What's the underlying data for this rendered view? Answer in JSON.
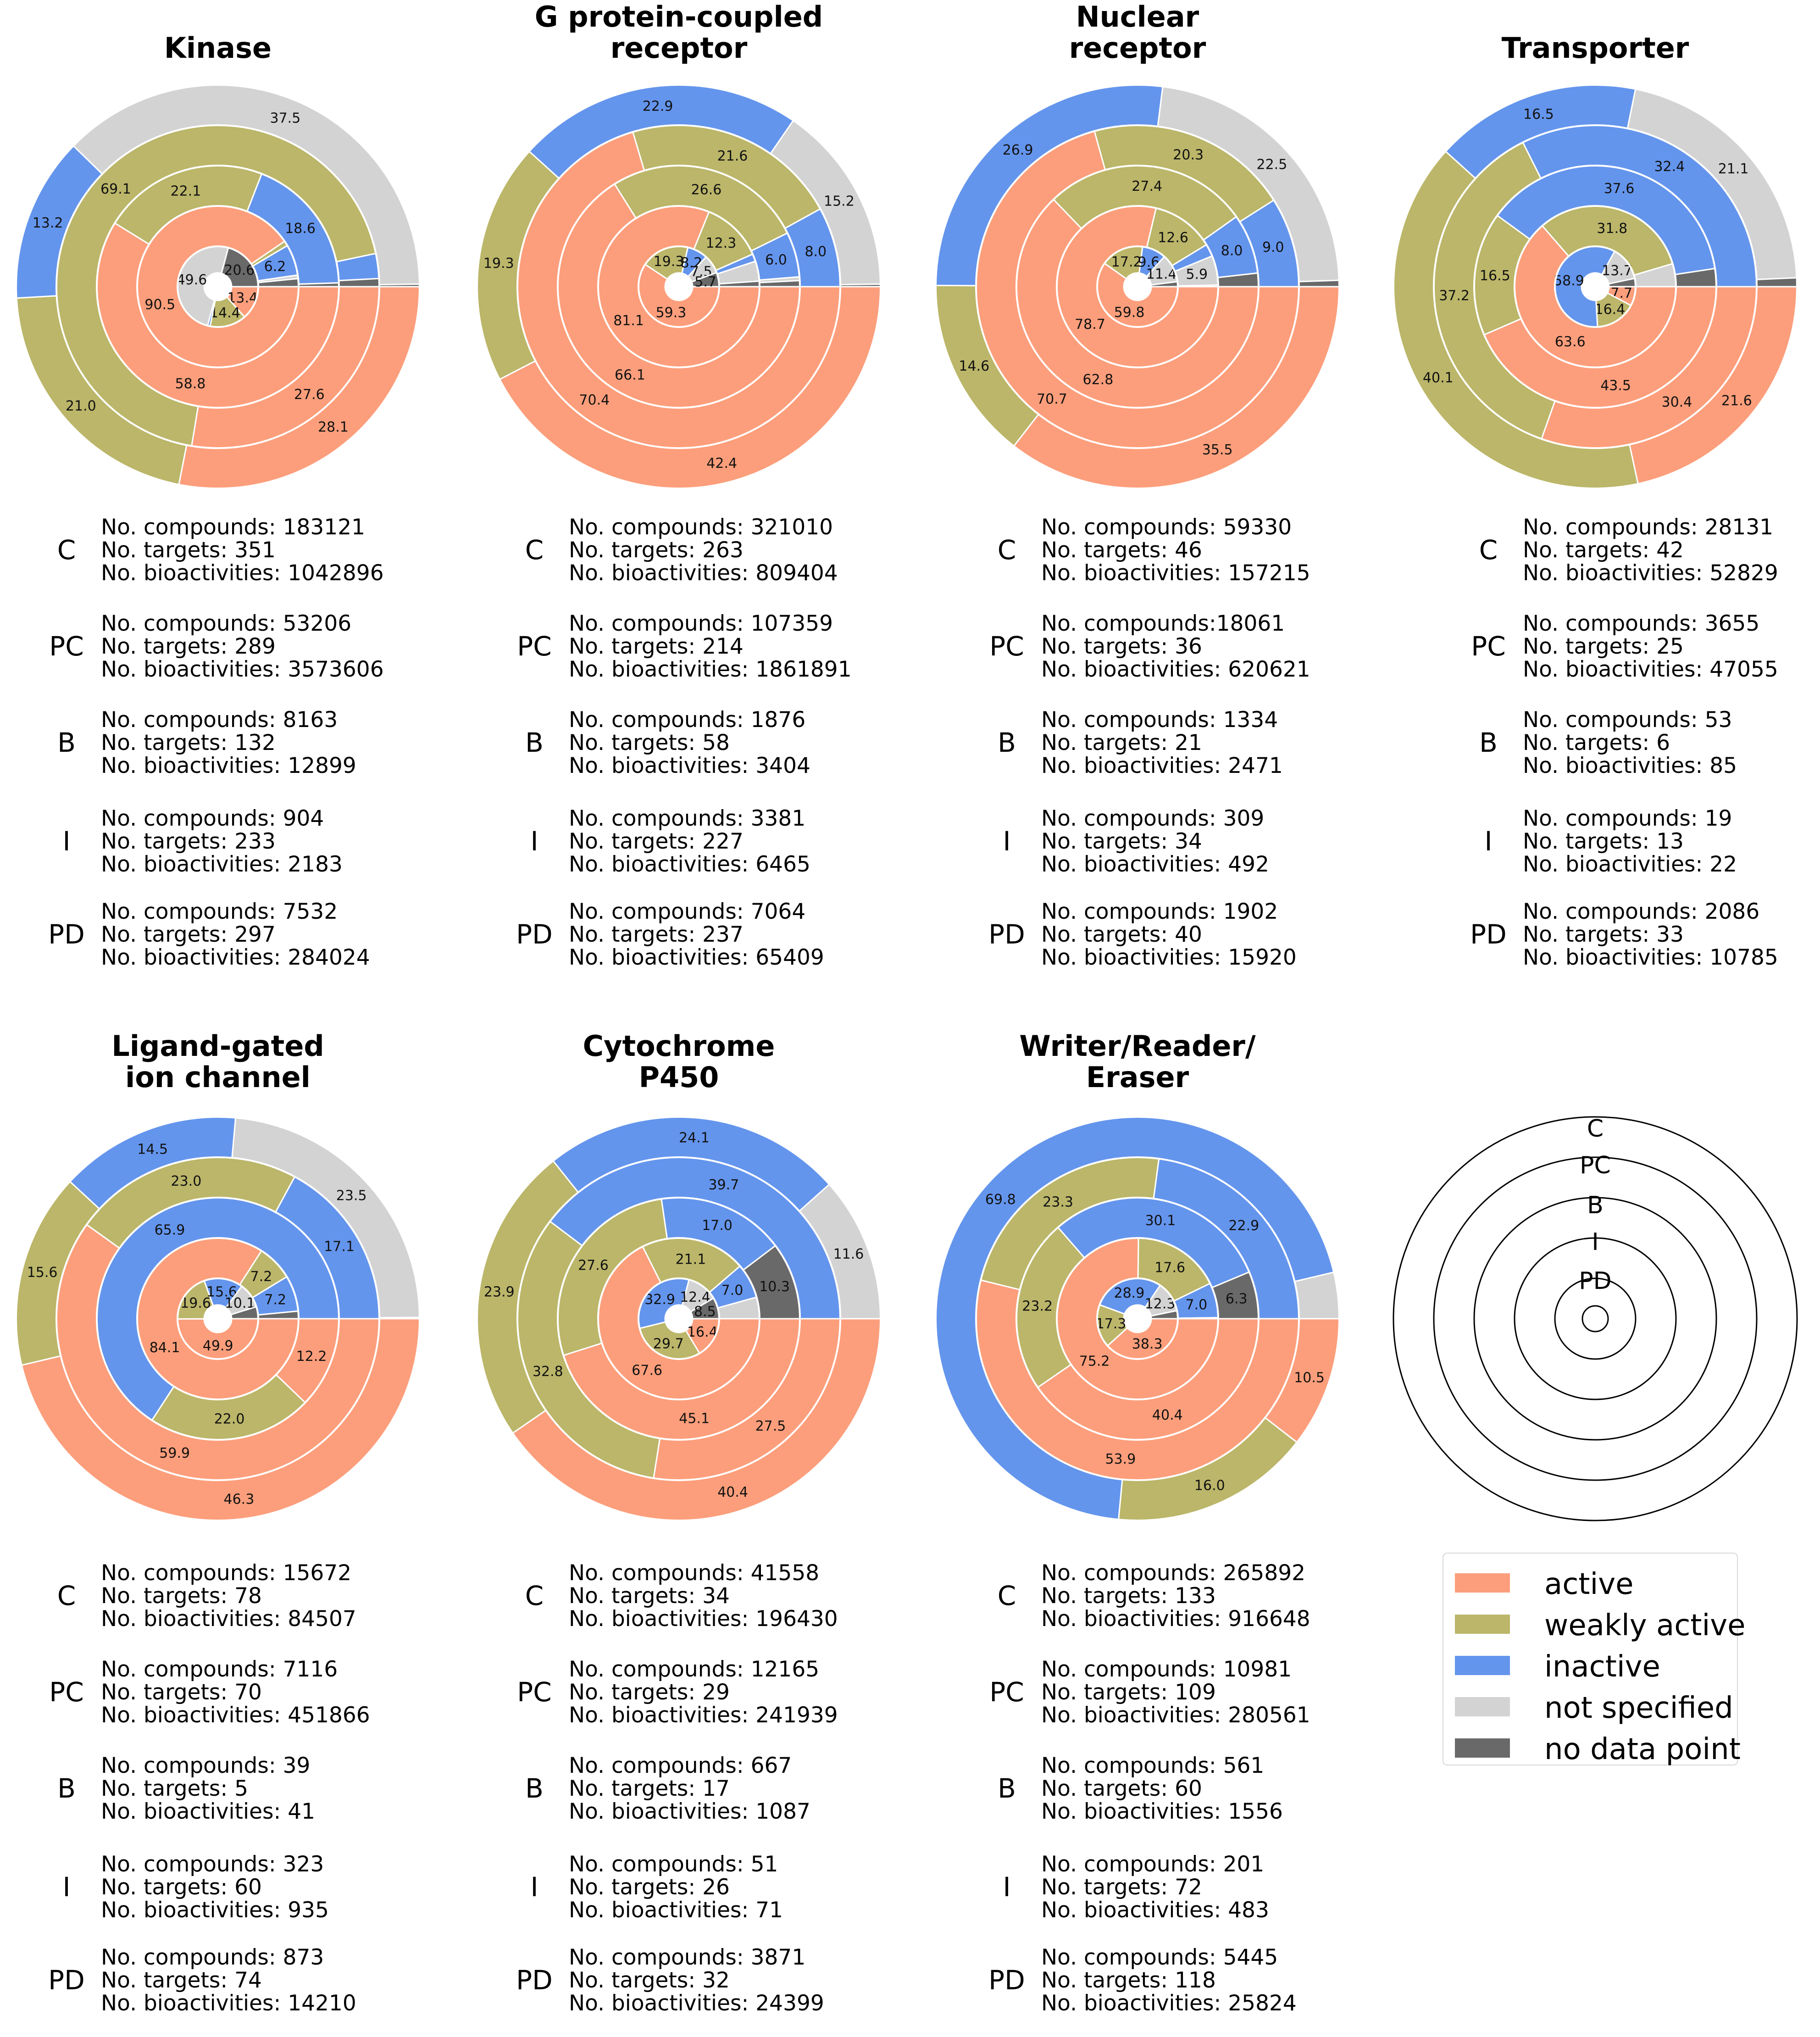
{
  "colors": {
    "active": "#fc9e7b",
    "weakly_active": "#bbb669",
    "inactive": "#6495ed",
    "not_specified": "#d3d3d3",
    "no_data_point": "#696969"
  },
  "legend": [
    {
      "key": "active",
      "label": "active"
    },
    {
      "key": "weakly_active",
      "label": "weakly active"
    },
    {
      "key": "inactive",
      "label": "inactive"
    },
    {
      "key": "not_specified",
      "label": "not specified"
    },
    {
      "key": "no_data_point",
      "label": "no data point"
    }
  ],
  "key_rings": [
    "C",
    "PC",
    "B",
    "I",
    "PD"
  ],
  "chart_data": [
    {
      "type": "pie",
      "title_lines": [
        "Kinase"
      ],
      "rings": [
        {
          "ring": "C",
          "values": [
            28.1,
            21.0,
            13.2,
            37.5,
            0.2
          ],
          "labels": [
            "28.1",
            "21.0",
            "13.2",
            "37.5",
            ""
          ]
        },
        {
          "ring": "PC",
          "values": [
            27.6,
            69.1,
            2.5,
            0,
            0.8
          ],
          "labels": [
            "27.6",
            "69.1",
            "",
            "",
            ""
          ]
        },
        {
          "ring": "B",
          "values": [
            58.8,
            22.1,
            18.6,
            0,
            0.5
          ],
          "labels": [
            "58.8",
            "22.1",
            "18.6",
            "",
            ""
          ]
        },
        {
          "ring": "I",
          "values": [
            90.5,
            1.0,
            6.2,
            0.7,
            1.6
          ],
          "labels": [
            "90.5",
            "",
            "6.2",
            "",
            ""
          ]
        },
        {
          "ring": "PD",
          "values": [
            13.4,
            14.4,
            1.0,
            49.6,
            20.6
          ],
          "labels": [
            "13.4",
            "14.4",
            "",
            "49.6",
            "20.6"
          ]
        }
      ],
      "stats": [
        {
          "code": "C",
          "lines": [
            "No. compounds: 183121",
            "No. targets: 351",
            "No. bioactivities: 1042896"
          ]
        },
        {
          "code": "PC",
          "lines": [
            "No. compounds: 53206",
            "No. targets: 289",
            "No. bioactivities: 3573606"
          ]
        },
        {
          "code": "B",
          "lines": [
            "No. compounds: 8163",
            "No. targets: 132",
            "No. bioactivities: 12899"
          ]
        },
        {
          "code": "I",
          "lines": [
            "No. compounds: 904",
            "No. targets: 233",
            "No. bioactivities: 2183"
          ]
        },
        {
          "code": "PD",
          "lines": [
            "No. compounds: 7532",
            "No. targets: 297",
            "No. bioactivities: 284024"
          ]
        }
      ]
    },
    {
      "type": "pie",
      "title_lines": [
        "G protein-coupled",
        "receptor"
      ],
      "rings": [
        {
          "ring": "C",
          "values": [
            42.4,
            19.3,
            22.9,
            15.2,
            0.2
          ],
          "labels": [
            "42.4",
            "19.3",
            "22.9",
            "15.2",
            ""
          ]
        },
        {
          "ring": "PC",
          "values": [
            70.4,
            21.6,
            8.0,
            0,
            0
          ],
          "labels": [
            "70.4",
            "21.6",
            "8.0",
            "",
            ""
          ]
        },
        {
          "ring": "B",
          "values": [
            66.1,
            26.6,
            6.0,
            0.5,
            0.8
          ],
          "labels": [
            "66.1",
            "26.6",
            "6.0",
            "",
            ""
          ]
        },
        {
          "ring": "I",
          "values": [
            81.1,
            12.3,
            1.5,
            4.0,
            1.1
          ],
          "labels": [
            "81.1",
            "12.3",
            "",
            "",
            ""
          ]
        },
        {
          "ring": "PD",
          "values": [
            59.3,
            19.3,
            8.2,
            7.5,
            5.7
          ],
          "labels": [
            "59.3",
            "19.3",
            "8.2",
            "7.5",
            "5.7"
          ]
        }
      ],
      "stats": [
        {
          "code": "C",
          "lines": [
            "No. compounds: 321010",
            "No. targets: 263",
            "No. bioactivities: 809404"
          ]
        },
        {
          "code": "PC",
          "lines": [
            "No. compounds: 107359",
            "No. targets: 214",
            "No. bioactivities: 1861891"
          ]
        },
        {
          "code": "B",
          "lines": [
            "No. compounds: 1876",
            "No. targets: 58",
            "No. bioactivities: 3404"
          ]
        },
        {
          "code": "I",
          "lines": [
            "No. compounds: 3381",
            "No. targets: 227",
            "No. bioactivities: 6465"
          ]
        },
        {
          "code": "PD",
          "lines": [
            "No. compounds: 7064",
            "No. targets: 237",
            "No. bioactivities: 65409"
          ]
        }
      ]
    },
    {
      "type": "pie",
      "title_lines": [
        "Nuclear",
        "receptor"
      ],
      "rings": [
        {
          "ring": "C",
          "values": [
            35.5,
            14.6,
            26.9,
            22.5,
            0.5
          ],
          "labels": [
            "35.5",
            "14.6",
            "26.9",
            "22.5",
            ""
          ]
        },
        {
          "ring": "PC",
          "values": [
            70.7,
            20.3,
            9.0,
            0,
            0
          ],
          "labels": [
            "70.7",
            "20.3",
            "9.0",
            "",
            ""
          ]
        },
        {
          "ring": "B",
          "values": [
            62.8,
            27.4,
            8.0,
            0,
            1.8
          ],
          "labels": [
            "62.8",
            "27.4",
            "8.0",
            "",
            ""
          ]
        },
        {
          "ring": "I",
          "values": [
            78.7,
            12.6,
            2.5,
            5.9,
            0.3
          ],
          "labels": [
            "78.7",
            "12.6",
            "",
            "5.9",
            ""
          ]
        },
        {
          "ring": "PD",
          "values": [
            59.8,
            17.2,
            9.6,
            11.4,
            2.0
          ],
          "labels": [
            "59.8",
            "17.2",
            "9.6",
            "11.4",
            ""
          ]
        }
      ],
      "stats": [
        {
          "code": "C",
          "lines": [
            "No. compounds: 59330",
            "No. targets: 46",
            "No. bioactivities: 157215"
          ]
        },
        {
          "code": "PC",
          "lines": [
            "No. compounds:18061",
            "No. targets: 36",
            "No. bioactivities: 620621"
          ]
        },
        {
          "code": "B",
          "lines": [
            "No. compounds: 1334",
            "No. targets: 21",
            "No. bioactivities: 2471"
          ]
        },
        {
          "code": "I",
          "lines": [
            "No. compounds: 309",
            "No. targets: 34",
            "No. bioactivities: 492"
          ]
        },
        {
          "code": "PD",
          "lines": [
            "No. compounds: 1902",
            "No. targets: 40",
            "No. bioactivities: 15920"
          ]
        }
      ]
    },
    {
      "type": "pie",
      "title_lines": [
        "Transporter"
      ],
      "rings": [
        {
          "ring": "C",
          "values": [
            21.6,
            40.1,
            16.5,
            21.1,
            0.7
          ],
          "labels": [
            "21.6",
            "40.1",
            "16.5",
            "21.1",
            ""
          ]
        },
        {
          "ring": "PC",
          "values": [
            30.4,
            37.2,
            32.4,
            0,
            0
          ],
          "labels": [
            "30.4",
            "37.2",
            "32.4",
            "",
            ""
          ]
        },
        {
          "ring": "B",
          "values": [
            43.5,
            16.5,
            37.6,
            0,
            2.4
          ],
          "labels": [
            "43.5",
            "16.5",
            "37.6",
            "",
            ""
          ]
        },
        {
          "ring": "I",
          "values": [
            63.6,
            31.8,
            0,
            4.6,
            0
          ],
          "labels": [
            "63.6",
            "31.8",
            "",
            "",
            ""
          ]
        },
        {
          "ring": "PD",
          "values": [
            7.7,
            16.4,
            58.9,
            13.7,
            3.3
          ],
          "labels": [
            "7.7",
            "16.4",
            "58.9",
            "13.7",
            ""
          ]
        }
      ],
      "stats": [
        {
          "code": "C",
          "lines": [
            "No. compounds: 28131",
            "No. targets: 42",
            "No. bioactivities: 52829"
          ]
        },
        {
          "code": "PC",
          "lines": [
            "No. compounds: 3655",
            "No. targets: 25",
            "No. bioactivities: 47055"
          ]
        },
        {
          "code": "B",
          "lines": [
            "No. compounds: 53",
            "No. targets: 6",
            "No. bioactivities: 85"
          ]
        },
        {
          "code": "I",
          "lines": [
            "No. compounds: 19",
            "No. targets: 13",
            "No. bioactivities: 22"
          ]
        },
        {
          "code": "PD",
          "lines": [
            "No. compounds: 2086",
            "No. targets: 33",
            "No. bioactivities: 10785"
          ]
        }
      ]
    },
    {
      "type": "pie",
      "title_lines": [
        "Ligand-gated",
        "ion channel"
      ],
      "rings": [
        {
          "ring": "C",
          "values": [
            46.3,
            15.6,
            14.5,
            23.5,
            0.1
          ],
          "labels": [
            "46.3",
            "15.6",
            "14.5",
            "23.5",
            ""
          ]
        },
        {
          "ring": "PC",
          "values": [
            59.9,
            23.0,
            17.1,
            0,
            0
          ],
          "labels": [
            "59.9",
            "23.0",
            "17.1",
            "",
            ""
          ]
        },
        {
          "ring": "B",
          "values": [
            12.2,
            22.0,
            65.9,
            0,
            0
          ],
          "labels": [
            "12.2",
            "22.0",
            "65.9",
            "",
            ""
          ]
        },
        {
          "ring": "I",
          "values": [
            84.1,
            7.2,
            7.2,
            0,
            1.5
          ],
          "labels": [
            "84.1",
            "7.2",
            "7.2",
            "",
            ""
          ]
        },
        {
          "ring": "PD",
          "values": [
            49.9,
            19.6,
            15.6,
            10.1,
            4.8
          ],
          "labels": [
            "49.9",
            "19.6",
            "15.6",
            "10.1",
            ""
          ]
        }
      ],
      "stats": [
        {
          "code": "C",
          "lines": [
            "No. compounds: 15672",
            "No. targets: 78",
            "No. bioactivities: 84507"
          ]
        },
        {
          "code": "PC",
          "lines": [
            "No. compounds: 7116",
            "No. targets: 70",
            "No. bioactivities: 451866"
          ]
        },
        {
          "code": "B",
          "lines": [
            "No. compounds: 39",
            "No. targets: 5",
            "No. bioactivities: 41"
          ]
        },
        {
          "code": "I",
          "lines": [
            "No. compounds: 323",
            "No. targets: 60",
            "No. bioactivities: 935"
          ]
        },
        {
          "code": "PD",
          "lines": [
            "No. compounds: 873",
            "No. targets: 74",
            "No. bioactivities: 14210"
          ]
        }
      ]
    },
    {
      "type": "pie",
      "title_lines": [
        "Cytochrome",
        "P450"
      ],
      "rings": [
        {
          "ring": "C",
          "values": [
            40.4,
            23.9,
            24.1,
            11.6,
            0
          ],
          "labels": [
            "40.4",
            "23.9",
            "24.1",
            "11.6",
            ""
          ]
        },
        {
          "ring": "PC",
          "values": [
            27.5,
            32.8,
            39.7,
            0,
            0
          ],
          "labels": [
            "27.5",
            "32.8",
            "39.7",
            "",
            ""
          ]
        },
        {
          "ring": "B",
          "values": [
            45.1,
            27.6,
            17.0,
            0,
            10.3
          ],
          "labels": [
            "45.1",
            "27.6",
            "17.0",
            "",
            "10.3"
          ]
        },
        {
          "ring": "I",
          "values": [
            67.6,
            21.1,
            7.0,
            4.3,
            0
          ],
          "labels": [
            "67.6",
            "21.1",
            "7.0",
            "",
            ""
          ]
        },
        {
          "ring": "PD",
          "values": [
            16.4,
            29.7,
            32.9,
            12.4,
            8.5
          ],
          "labels": [
            "16.4",
            "29.7",
            "32.9",
            "12.4",
            "8.5"
          ]
        }
      ],
      "stats": [
        {
          "code": "C",
          "lines": [
            "No. compounds: 41558",
            "No. targets: 34",
            "No. bioactivities: 196430"
          ]
        },
        {
          "code": "PC",
          "lines": [
            "No. compounds: 12165",
            "No. targets: 29",
            "No. bioactivities: 241939"
          ]
        },
        {
          "code": "B",
          "lines": [
            "No. compounds: 667",
            "No. targets: 17",
            "No. bioactivities: 1087"
          ]
        },
        {
          "code": "I",
          "lines": [
            "No. compounds: 51",
            "No. targets: 26",
            "No. bioactivities: 71"
          ]
        },
        {
          "code": "PD",
          "lines": [
            "No. compounds: 3871",
            "No. targets: 32",
            "No. bioactivities: 24399"
          ]
        }
      ]
    },
    {
      "type": "pie",
      "title_lines": [
        "Writer/Reader/",
        "Eraser"
      ],
      "rings": [
        {
          "ring": "C",
          "values": [
            10.5,
            16.0,
            69.8,
            3.7,
            0
          ],
          "labels": [
            "10.5",
            "16.0",
            "69.8",
            "",
            ""
          ]
        },
        {
          "ring": "PC",
          "values": [
            53.9,
            23.3,
            22.9,
            0,
            0
          ],
          "labels": [
            "53.9",
            "23.3",
            "22.9",
            "",
            ""
          ]
        },
        {
          "ring": "B",
          "values": [
            40.4,
            23.2,
            30.1,
            0,
            6.3
          ],
          "labels": [
            "40.4",
            "23.2",
            "30.1",
            "",
            "6.3"
          ]
        },
        {
          "ring": "I",
          "values": [
            75.2,
            17.6,
            7.0,
            0,
            0.2
          ],
          "labels": [
            "75.2",
            "17.6",
            "7.0",
            "",
            ""
          ]
        },
        {
          "ring": "PD",
          "values": [
            38.3,
            17.3,
            28.9,
            12.3,
            3.2
          ],
          "labels": [
            "38.3",
            "17.3",
            "28.9",
            "12.3",
            ""
          ]
        }
      ],
      "stats": [
        {
          "code": "C",
          "lines": [
            "No. compounds: 265892",
            "No. targets: 133",
            "No. bioactivities: 916648"
          ]
        },
        {
          "code": "PC",
          "lines": [
            "No. compounds: 10981",
            "No. targets: 109",
            "No. bioactivities: 280561"
          ]
        },
        {
          "code": "B",
          "lines": [
            "No. compounds: 561",
            "No. targets: 60",
            "No. bioactivities: 1556"
          ]
        },
        {
          "code": "I",
          "lines": [
            "No. compounds: 201",
            "No. targets: 72",
            "No. bioactivities: 483"
          ]
        },
        {
          "code": "PD",
          "lines": [
            "No. compounds: 5445",
            "No. targets: 118",
            "No. bioactivities: 25824"
          ]
        }
      ]
    }
  ]
}
